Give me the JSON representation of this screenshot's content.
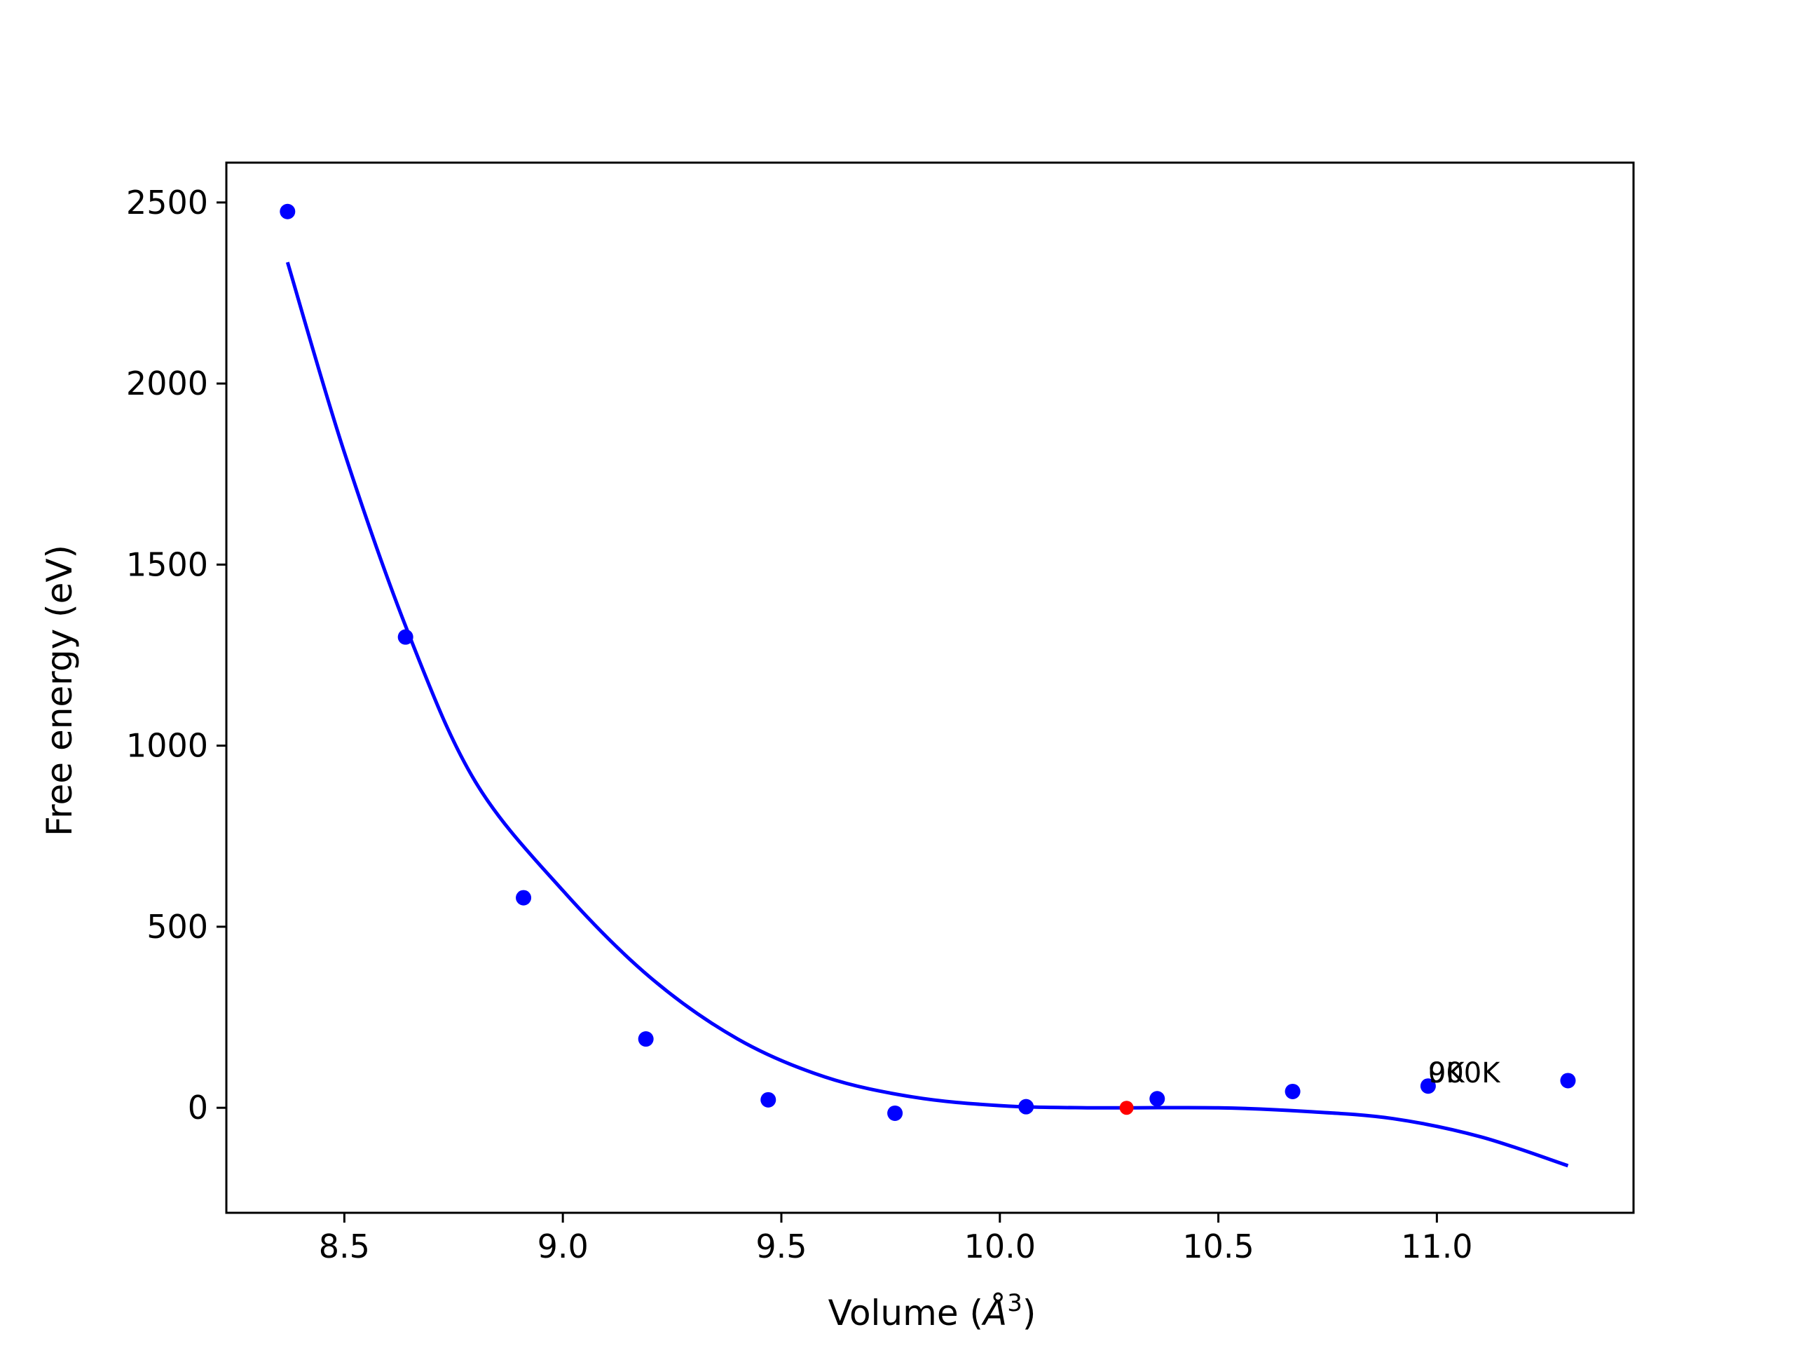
{
  "chart_data": {
    "type": "scatter",
    "xlabel": "Volume (",
    "xlabel_symbol": "Å",
    "xlabel_exponent": "3",
    "xlabel_close": ")",
    "ylabel": "Free energy (eV)",
    "xlim": [
      8.23,
      11.45
    ],
    "ylim": [
      -290,
      2610
    ],
    "x_ticks": [
      8.5,
      9.0,
      9.5,
      10.0,
      10.5,
      11.0
    ],
    "x_tick_labels": [
      "8.5",
      "9.0",
      "9.5",
      "10.0",
      "10.5",
      "11.0"
    ],
    "y_ticks": [
      0,
      500,
      1000,
      1500,
      2000,
      2500
    ],
    "y_tick_labels": [
      "0",
      "500",
      "1000",
      "1500",
      "2000",
      "2500"
    ],
    "grid": false,
    "series": [
      {
        "kind": "points",
        "color": "#0000ff",
        "points": [
          {
            "x": 8.37,
            "y": 2475
          },
          {
            "x": 8.64,
            "y": 1300
          },
          {
            "x": 8.91,
            "y": 580
          },
          {
            "x": 9.19,
            "y": 190
          },
          {
            "x": 9.47,
            "y": 22
          },
          {
            "x": 9.76,
            "y": -15
          },
          {
            "x": 10.06,
            "y": 3
          },
          {
            "x": 10.36,
            "y": 25
          },
          {
            "x": 10.67,
            "y": 45
          },
          {
            "x": 10.98,
            "y": 60
          },
          {
            "x": 11.3,
            "y": 75
          }
        ]
      },
      {
        "kind": "fit-curve",
        "color": "#0000ff",
        "points": [
          {
            "x": 8.37,
            "y": 2335
          },
          {
            "x": 8.5,
            "y": 1810
          },
          {
            "x": 8.65,
            "y": 1300
          },
          {
            "x": 8.8,
            "y": 900
          },
          {
            "x": 9.0,
            "y": 600
          },
          {
            "x": 9.2,
            "y": 360
          },
          {
            "x": 9.4,
            "y": 190
          },
          {
            "x": 9.6,
            "y": 85
          },
          {
            "x": 9.8,
            "y": 30
          },
          {
            "x": 10.0,
            "y": 6
          },
          {
            "x": 10.2,
            "y": 0
          },
          {
            "x": 10.5,
            "y": 0
          },
          {
            "x": 10.7,
            "y": -10
          },
          {
            "x": 10.9,
            "y": -30
          },
          {
            "x": 11.1,
            "y": -80
          },
          {
            "x": 11.3,
            "y": -160
          }
        ]
      },
      {
        "kind": "minimum-point",
        "color": "#ff0000",
        "points": [
          {
            "x": 10.29,
            "y": 0
          }
        ]
      }
    ],
    "annotations": [
      {
        "text": "0K",
        "x": 10.98,
        "y": 70
      },
      {
        "text": "900K",
        "x": 10.98,
        "y": 70
      }
    ]
  }
}
